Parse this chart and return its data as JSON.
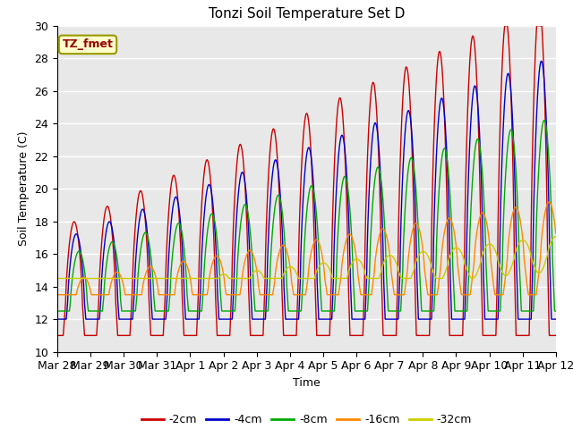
{
  "title": "Tonzi Soil Temperature Set D",
  "xlabel": "Time",
  "ylabel": "Soil Temperature (C)",
  "ylim": [
    10,
    30
  ],
  "bg_color": "#e8e8e8",
  "legend_label": "TZ_fmet",
  "legend_box_color": "#ffffcc",
  "legend_box_edge": "#999900",
  "legend_text_color": "#990000",
  "series_colors": [
    "#cc0000",
    "#0000cc",
    "#00aa00",
    "#ff8800",
    "#cccc00"
  ],
  "series_labels": [
    "-2cm",
    "-4cm",
    "-8cm",
    "-16cm",
    "-32cm"
  ],
  "xtick_labels": [
    "Mar 28",
    "Mar 29",
    "Mar 30",
    "Mar 31",
    "Apr 1",
    "Apr 2",
    "Apr 3",
    "Apr 4",
    "Apr 5",
    "Apr 6",
    "Apr 7",
    "Apr 8",
    "Apr 9",
    "Apr 10",
    "Apr 11",
    "Apr 12"
  ],
  "yticks": [
    10,
    12,
    14,
    16,
    18,
    20,
    22,
    24,
    26,
    28,
    30
  ]
}
